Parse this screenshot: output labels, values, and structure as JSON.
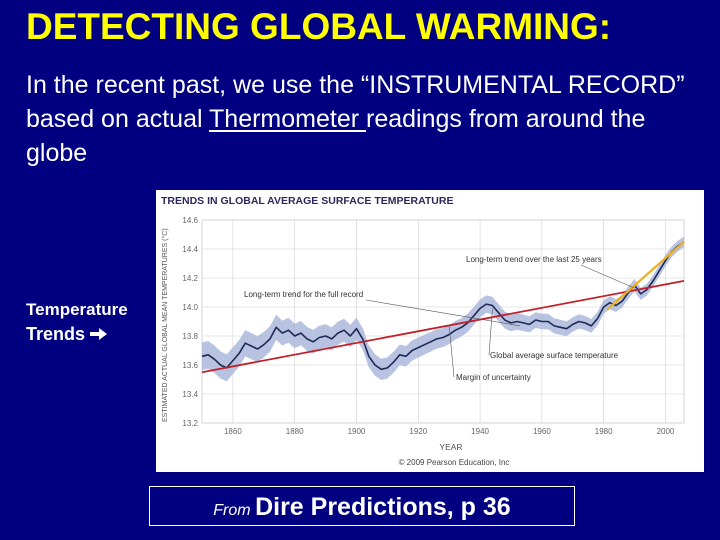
{
  "slide": {
    "title": "DETECTING GLOBAL WARMING:",
    "body_pre": "In the  recent past, we use the “INSTRUMENTAL RECORD” based on actual  ",
    "body_underlined": "Thermometer ",
    "body_post": "readings from around the  globe",
    "side_label_line1": "Temperature",
    "side_label_line2": "Trends",
    "side_arrow_icon": "bold-right-arrow-icon",
    "caption_from": "From",
    "caption_source": "Dire Predictions, p 36",
    "background_color": "#000080",
    "title_color": "#ffff00"
  },
  "chart_data": {
    "type": "line",
    "title": "TRENDS IN GLOBAL AVERAGE SURFACE TEMPERATURE",
    "xlabel": "YEAR",
    "ylabel": "ESTIMATED ACTUAL GLOBAL MEAN TEMPERATURES (°C)",
    "xlim": [
      1850,
      2006
    ],
    "ylim": [
      13.2,
      14.6
    ],
    "x_ticks": [
      "1860",
      "1880",
      "1900",
      "1920",
      "1940",
      "1960",
      "1980",
      "2000"
    ],
    "y_ticks": [
      "14.6",
      "14.4",
      "14.2",
      "14.0",
      "13.8",
      "13.6",
      "13.4",
      "13.2"
    ],
    "grid": true,
    "copyright": "© 2009 Pearson Education, Inc",
    "annotations": {
      "long_trend_recent": "Long-term trend over the last 25 years",
      "long_trend_full": "Long-term trend for the full record",
      "global_average": "Global average surface temperature",
      "uncertainty": "Margin of uncertainty"
    },
    "colors": {
      "series": "#1f2a55",
      "uncertainty": "#aab8dc",
      "trend_full": "#c0202a",
      "trend_recent": "#f0b020",
      "grid": "#cfcfcf",
      "title": "#2a2a5a"
    },
    "series": [
      {
        "x": [
          1850,
          1852,
          1854,
          1856,
          1858,
          1860,
          1862,
          1864,
          1866,
          1868,
          1870,
          1872,
          1874,
          1876,
          1878,
          1880,
          1882,
          1884,
          1886,
          1888,
          1890,
          1892,
          1894,
          1896,
          1898,
          1900,
          1902,
          1904,
          1906,
          1908,
          1910,
          1912,
          1914,
          1916,
          1918,
          1920,
          1922,
          1924,
          1926,
          1928,
          1930,
          1932,
          1934,
          1936,
          1938,
          1940,
          1942,
          1944,
          1946,
          1948,
          1950,
          1952,
          1954,
          1956,
          1958,
          1960,
          1962,
          1964,
          1966,
          1968,
          1970,
          1972,
          1974,
          1976,
          1978,
          1980,
          1982,
          1984,
          1986,
          1988,
          1990,
          1992,
          1994,
          1996,
          1998,
          2000,
          2002,
          2004,
          2006
        ],
        "values": [
          13.66,
          13.67,
          13.64,
          13.6,
          13.58,
          13.63,
          13.68,
          13.75,
          13.73,
          13.71,
          13.74,
          13.78,
          13.86,
          13.82,
          13.84,
          13.8,
          13.82,
          13.78,
          13.76,
          13.79,
          13.8,
          13.78,
          13.82,
          13.84,
          13.8,
          13.85,
          13.78,
          13.66,
          13.6,
          13.57,
          13.58,
          13.62,
          13.67,
          13.66,
          13.7,
          13.72,
          13.74,
          13.76,
          13.78,
          13.79,
          13.81,
          13.84,
          13.86,
          13.89,
          13.94,
          13.99,
          14.02,
          14.01,
          13.96,
          13.91,
          13.89,
          13.9,
          13.89,
          13.88,
          13.91,
          13.9,
          13.9,
          13.87,
          13.86,
          13.85,
          13.88,
          13.9,
          13.89,
          13.87,
          13.92,
          14.0,
          14.03,
          14.01,
          14.04,
          14.1,
          14.15,
          14.09,
          14.12,
          14.18,
          14.25,
          14.32,
          14.38,
          14.42,
          14.45
        ]
      }
    ],
    "trend_lines": [
      {
        "label": "Long-term trend for the full record",
        "x": [
          1850,
          2006
        ],
        "y": [
          13.55,
          14.18
        ]
      },
      {
        "label": "Long-term trend over the last 25 years",
        "x": [
          1981,
          2006
        ],
        "y": [
          13.98,
          14.45
        ]
      }
    ],
    "uncertainty_margin": 0.06
  }
}
